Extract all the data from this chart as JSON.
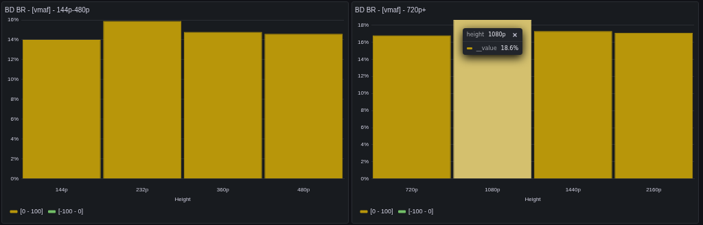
{
  "chart_data": [
    {
      "type": "bar",
      "title": "BD BR - [vmaf] - 144p-480p",
      "xlabel": "Height",
      "categories": [
        "144p",
        "232p",
        "360p",
        "480p"
      ],
      "series": [
        {
          "name": "[0 - 100]",
          "color": "#b8960a",
          "values": [
            14.0,
            15.9,
            14.8,
            14.6
          ]
        },
        {
          "name": "[-100 - 0]",
          "color": "#73bf69",
          "values": [
            null,
            null,
            null,
            null
          ]
        }
      ],
      "ylim": [
        0,
        16
      ],
      "yticks": [
        {
          "value": 0,
          "label": "0%"
        },
        {
          "value": 2,
          "label": "2%"
        },
        {
          "value": 4,
          "label": "4%"
        },
        {
          "value": 6,
          "label": "6%"
        },
        {
          "value": 8,
          "label": "8%"
        },
        {
          "value": 10,
          "label": "10%"
        },
        {
          "value": 12,
          "label": "12%"
        },
        {
          "value": 14,
          "label": "14%"
        },
        {
          "value": 16,
          "label": "16%"
        }
      ],
      "grid": "y",
      "legend": "bottom"
    },
    {
      "type": "bar",
      "title": "BD BR - [vmaf] - 720p+",
      "xlabel": "Height",
      "categories": [
        "720p",
        "1080p",
        "1440p",
        "2160p"
      ],
      "series": [
        {
          "name": "[0 - 100]",
          "color": "#b8960a",
          "colors": [
            "#b8960a",
            "#d4c06e",
            "#b8960a",
            "#b8960a"
          ],
          "values": [
            16.8,
            18.6,
            17.3,
            17.1
          ]
        },
        {
          "name": "[-100 - 0]",
          "color": "#73bf69",
          "values": [
            null,
            null,
            null,
            null
          ]
        }
      ],
      "ylim": [
        0,
        18.6
      ],
      "yticks": [
        {
          "value": 0,
          "label": "0%"
        },
        {
          "value": 2,
          "label": "2%"
        },
        {
          "value": 4,
          "label": "4%"
        },
        {
          "value": 6,
          "label": "6%"
        },
        {
          "value": 8,
          "label": "8%"
        },
        {
          "value": 10,
          "label": "10%"
        },
        {
          "value": 12,
          "label": "12%"
        },
        {
          "value": 14,
          "label": "14%"
        },
        {
          "value": 16,
          "label": "16%"
        },
        {
          "value": 18,
          "label": "18%"
        }
      ],
      "grid": "y",
      "legend": "bottom",
      "annotations": [
        "height",
        "1080p",
        "__value",
        "18.6%"
      ]
    }
  ]
}
